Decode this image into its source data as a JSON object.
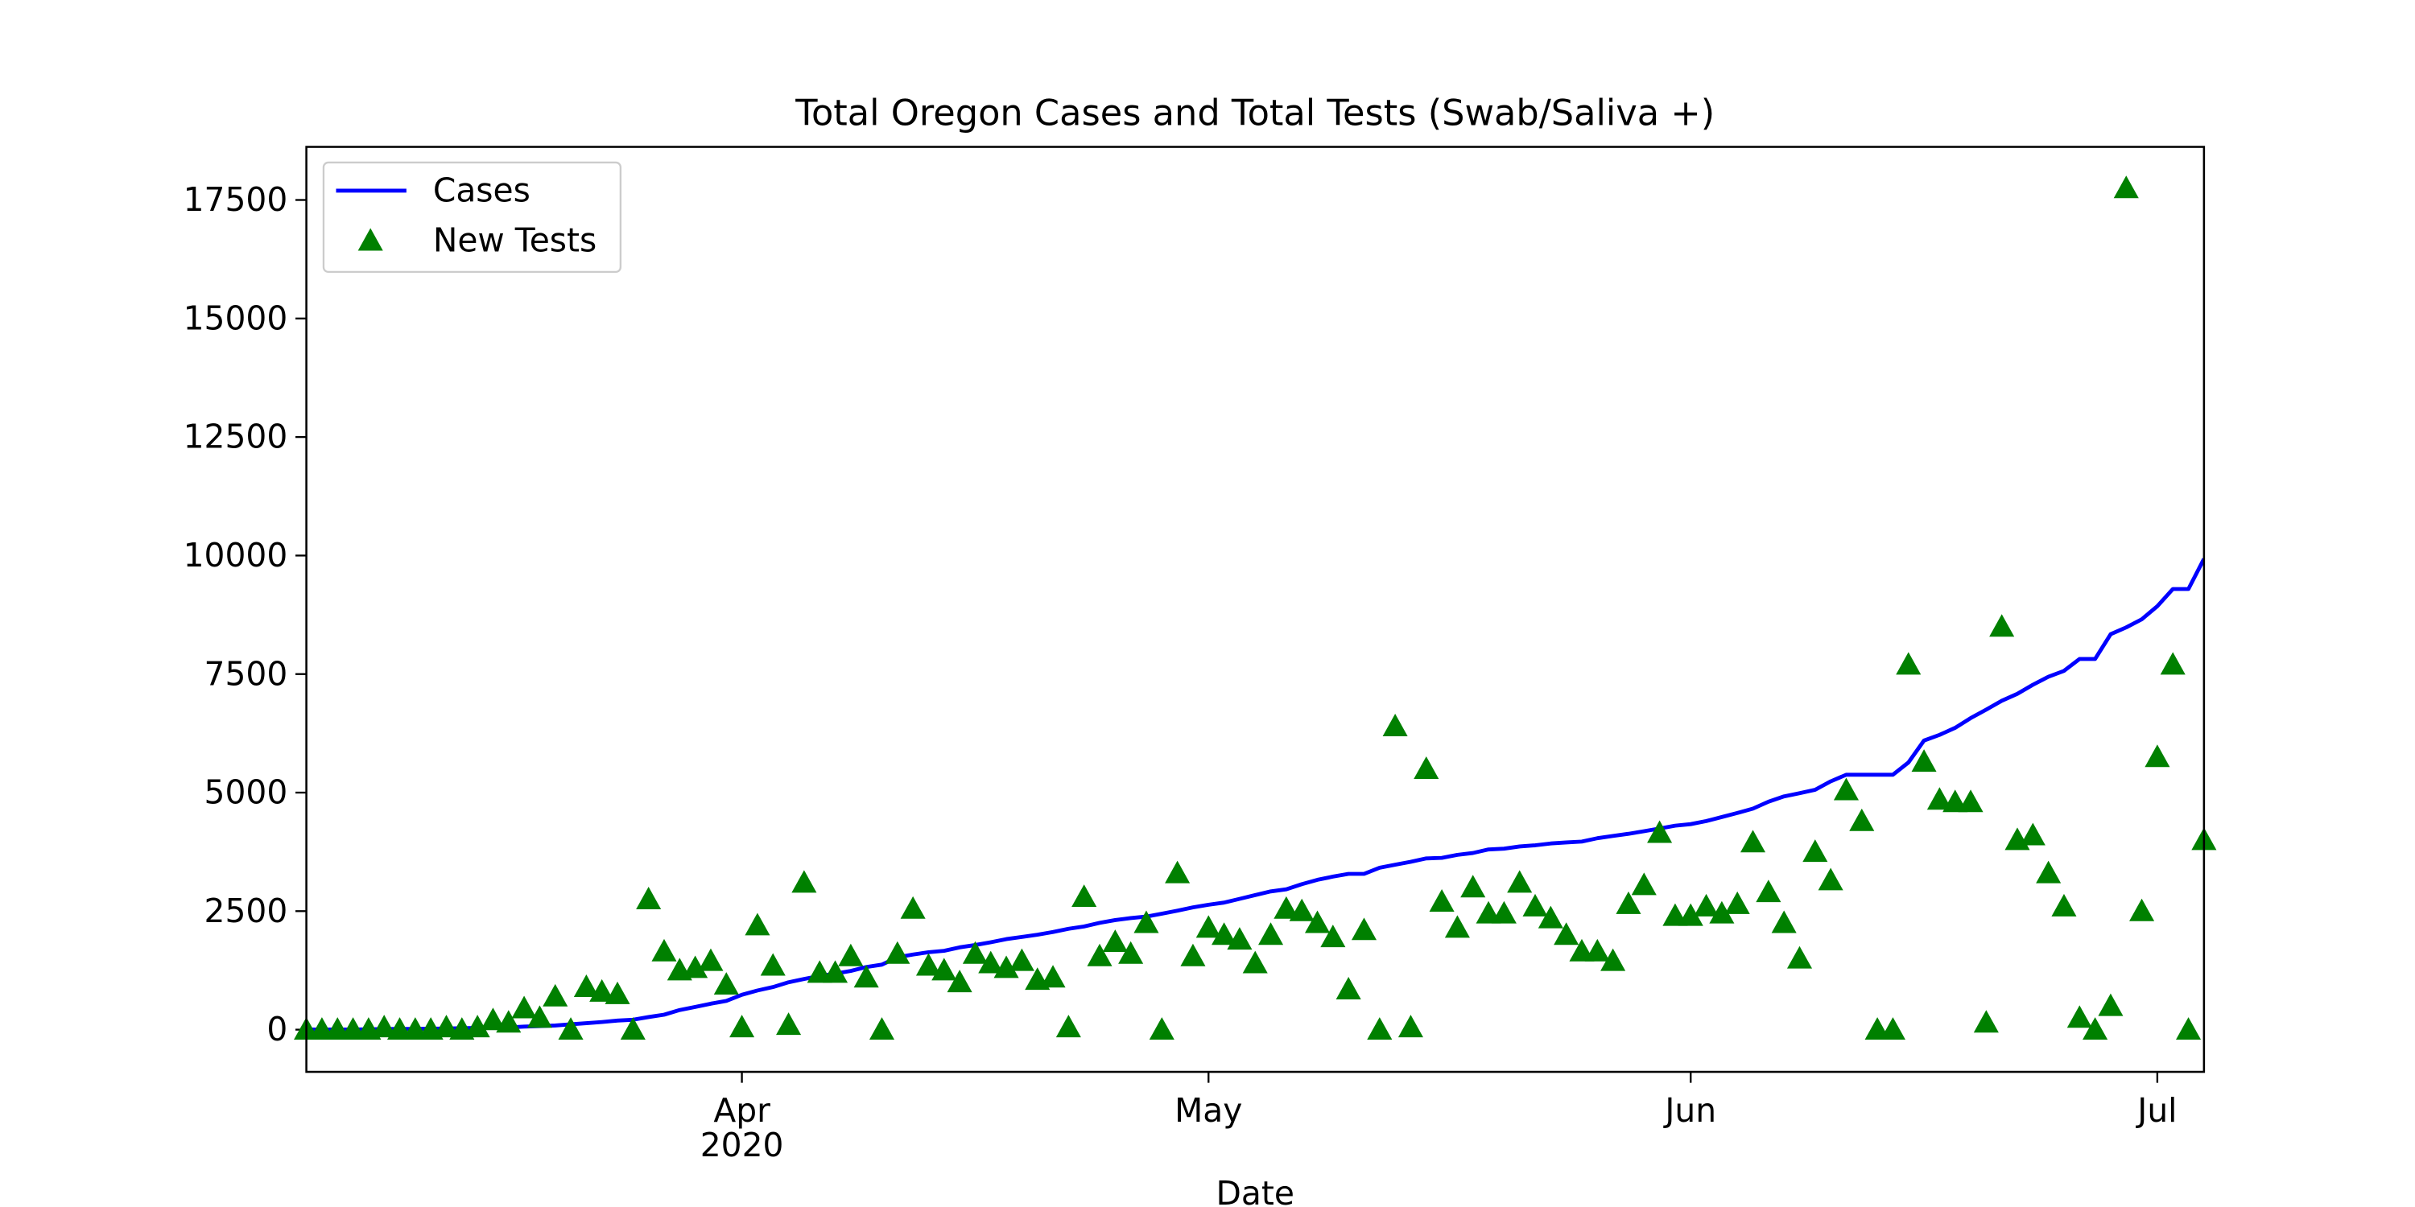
{
  "chart_data": {
    "type": "line_scatter",
    "title": "Total Oregon Cases and Total Tests (Swab/Saliva +)",
    "xlabel": "Date",
    "x_year_label": "2020",
    "x": [
      "2020-03-04",
      "2020-03-05",
      "2020-03-06",
      "2020-03-07",
      "2020-03-08",
      "2020-03-09",
      "2020-03-10",
      "2020-03-11",
      "2020-03-12",
      "2020-03-13",
      "2020-03-14",
      "2020-03-15",
      "2020-03-16",
      "2020-03-17",
      "2020-03-18",
      "2020-03-19",
      "2020-03-20",
      "2020-03-21",
      "2020-03-22",
      "2020-03-23",
      "2020-03-24",
      "2020-03-25",
      "2020-03-26",
      "2020-03-27",
      "2020-03-28",
      "2020-03-29",
      "2020-03-30",
      "2020-03-31",
      "2020-04-01",
      "2020-04-02",
      "2020-04-03",
      "2020-04-04",
      "2020-04-05",
      "2020-04-06",
      "2020-04-07",
      "2020-04-08",
      "2020-04-09",
      "2020-04-10",
      "2020-04-11",
      "2020-04-12",
      "2020-04-13",
      "2020-04-14",
      "2020-04-15",
      "2020-04-16",
      "2020-04-17",
      "2020-04-18",
      "2020-04-19",
      "2020-04-20",
      "2020-04-21",
      "2020-04-22",
      "2020-04-23",
      "2020-04-24",
      "2020-04-25",
      "2020-04-26",
      "2020-04-27",
      "2020-04-28",
      "2020-04-29",
      "2020-04-30",
      "2020-05-01",
      "2020-05-02",
      "2020-05-03",
      "2020-05-04",
      "2020-05-05",
      "2020-05-06",
      "2020-05-07",
      "2020-05-08",
      "2020-05-09",
      "2020-05-10",
      "2020-05-11",
      "2020-05-12",
      "2020-05-13",
      "2020-05-14",
      "2020-05-15",
      "2020-05-16",
      "2020-05-17",
      "2020-05-18",
      "2020-05-19",
      "2020-05-20",
      "2020-05-21",
      "2020-05-22",
      "2020-05-23",
      "2020-05-24",
      "2020-05-25",
      "2020-05-26",
      "2020-05-27",
      "2020-05-28",
      "2020-05-29",
      "2020-05-30",
      "2020-05-31",
      "2020-06-01",
      "2020-06-02",
      "2020-06-03",
      "2020-06-04",
      "2020-06-05",
      "2020-06-06",
      "2020-06-07",
      "2020-06-08",
      "2020-06-09",
      "2020-06-10",
      "2020-06-11",
      "2020-06-12",
      "2020-06-13",
      "2020-06-14",
      "2020-06-15",
      "2020-06-16",
      "2020-06-17",
      "2020-06-18",
      "2020-06-19",
      "2020-06-20",
      "2020-06-21",
      "2020-06-22",
      "2020-06-23",
      "2020-06-24",
      "2020-06-25",
      "2020-06-26",
      "2020-06-27",
      "2020-06-28",
      "2020-06-29",
      "2020-06-30",
      "2020-07-01",
      "2020-07-02",
      "2020-07-03",
      "2020-07-04"
    ],
    "series": [
      {
        "name": "Cases",
        "color": "#0000ff",
        "style": "line",
        "values": [
          3,
          3,
          3,
          3,
          7,
          14,
          15,
          15,
          19,
          24,
          30,
          36,
          39,
          47,
          65,
          75,
          88,
          114,
          137,
          161,
          191,
          209,
          266,
          316,
          414,
          479,
          548,
          606,
          736,
          826,
          899,
          999,
          1068,
          1132,
          1181,
          1239,
          1321,
          1371,
          1527,
          1584,
          1633,
          1663,
          1736,
          1785,
          1844,
          1910,
          1956,
          2002,
          2059,
          2127,
          2177,
          2253,
          2311,
          2354,
          2385,
          2446,
          2510,
          2579,
          2635,
          2680,
          2759,
          2839,
          2916,
          2960,
          3068,
          3160,
          3228,
          3286,
          3286,
          3416,
          3479,
          3541,
          3612,
          3623,
          3687,
          3726,
          3801,
          3817,
          3864,
          3888,
          3927,
          3949,
          3967,
          4038,
          4086,
          4131,
          4185,
          4243,
          4302,
          4335,
          4399,
          4484,
          4570,
          4662,
          4808,
          4920,
          4988,
          5060,
          5237,
          5377,
          5377,
          5377,
          5377,
          5636,
          6098,
          6218,
          6366,
          6572,
          6750,
          6937,
          7083,
          7274,
          7444,
          7568,
          7818,
          7818,
          8341,
          8485,
          8656,
          8931,
          9294,
          9294,
          9930
        ]
      },
      {
        "name": "New Tests",
        "color": "#008000",
        "style": "triangle",
        "values": [
          0,
          0,
          0,
          0,
          0,
          50,
          0,
          0,
          0,
          50,
          0,
          50,
          200,
          150,
          450,
          250,
          700,
          0,
          900,
          800,
          750,
          0,
          2750,
          1650,
          1250,
          1300,
          1450,
          950,
          50,
          2200,
          1350,
          100,
          3100,
          1200,
          1200,
          1550,
          1100,
          0,
          1600,
          2550,
          1350,
          1250,
          1000,
          1600,
          1400,
          1300,
          1450,
          1050,
          1100,
          50,
          2800,
          1550,
          1850,
          1600,
          2250,
          0,
          3300,
          1550,
          2150,
          2000,
          1900,
          1400,
          2000,
          2550,
          2500,
          2250,
          1950,
          850,
          2100,
          0,
          6400,
          50,
          5500,
          2700,
          2150,
          3000,
          2450,
          2450,
          3100,
          2600,
          2350,
          2000,
          1650,
          1650,
          1450,
          2650,
          3050,
          4150,
          2400,
          2400,
          2600,
          2450,
          2650,
          3950,
          2900,
          2250,
          1500,
          3750,
          3150,
          5050,
          4400,
          0,
          0,
          7700,
          5650,
          4850,
          4800,
          4800,
          150,
          8500,
          4000,
          4100,
          3300,
          2600,
          250,
          0,
          500,
          17750,
          2500,
          5750,
          7700,
          0,
          4000
        ]
      }
    ],
    "xlim": [
      "2020-03-04",
      "2020-07-04"
    ],
    "xticks": [
      {
        "value": "2020-04-01",
        "label": "Apr"
      },
      {
        "value": "2020-05-01",
        "label": "May"
      },
      {
        "value": "2020-06-01",
        "label": "Jun"
      },
      {
        "value": "2020-07-01",
        "label": "Jul"
      }
    ],
    "ylim": [
      -890,
      18620
    ],
    "yticks": [
      0,
      2500,
      5000,
      7500,
      10000,
      12500,
      15000,
      17500
    ],
    "grid": false,
    "legend": "upper left"
  }
}
